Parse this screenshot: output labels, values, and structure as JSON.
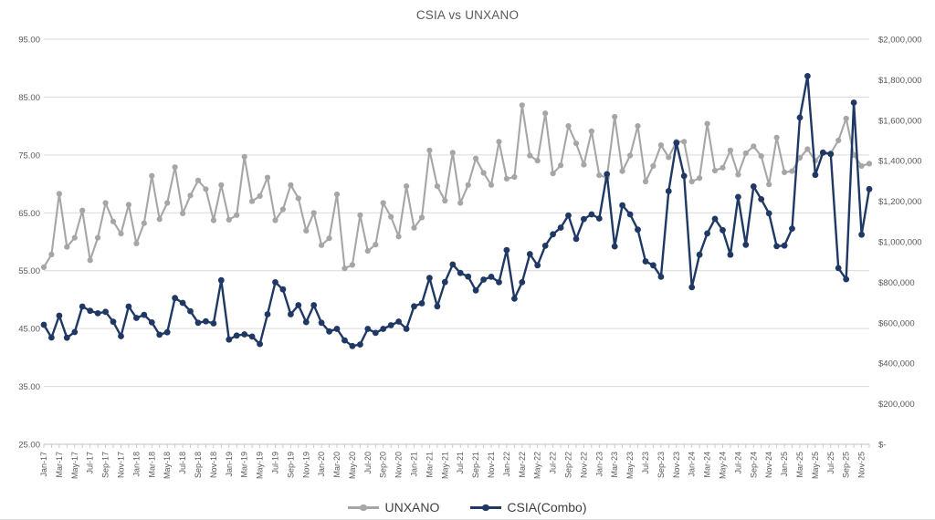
{
  "title": "CSIA vs UNXANO",
  "legend": {
    "items": [
      {
        "label": "UNXANO",
        "color": "#A6A6A6"
      },
      {
        "label": "CSIA(Combo)",
        "color": "#1F3864"
      }
    ]
  },
  "colors": {
    "background": "#FFFFFF",
    "gridline": "#D9D9D9",
    "axis_line": "#BFBFBF",
    "axis_text": "#595959",
    "title_text": "#595959",
    "legend_text": "#404040",
    "series_unxano": "#A6A6A6",
    "series_csia": "#1F3864"
  },
  "chart_data": {
    "type": "line",
    "title": "CSIA vs UNXANO",
    "grid": true,
    "legend_position": "bottom",
    "x_tick_label_every": 2,
    "x": [
      "Jan-17",
      "Feb-17",
      "Mar-17",
      "Apr-17",
      "May-17",
      "Jun-17",
      "Jul-17",
      "Aug-17",
      "Sep-17",
      "Oct-17",
      "Nov-17",
      "Dec-17",
      "Jan-18",
      "Feb-18",
      "Mar-18",
      "Apr-18",
      "May-18",
      "Jun-18",
      "Jul-18",
      "Aug-18",
      "Sep-18",
      "Oct-18",
      "Nov-18",
      "Dec-18",
      "Jan-19",
      "Feb-19",
      "Mar-19",
      "Apr-19",
      "May-19",
      "Jun-19",
      "Jul-19",
      "Aug-19",
      "Sep-19",
      "Oct-19",
      "Nov-19",
      "Dec-19",
      "Jan-20",
      "Feb-20",
      "Mar-20",
      "Apr-20",
      "May-20",
      "Jun-20",
      "Jul-20",
      "Aug-20",
      "Sep-20",
      "Oct-20",
      "Nov-20",
      "Dec-20",
      "Jan-21",
      "Feb-21",
      "Mar-21",
      "Apr-21",
      "May-21",
      "Jun-21",
      "Jul-21",
      "Aug-21",
      "Sep-21",
      "Oct-21",
      "Nov-21",
      "Dec-21",
      "Jan-22",
      "Feb-22",
      "Mar-22",
      "Apr-22",
      "May-22",
      "Jun-22",
      "Jul-22",
      "Aug-22",
      "Sep-22",
      "Oct-22",
      "Nov-22",
      "Dec-22",
      "Jan-23",
      "Feb-23",
      "Mar-23",
      "Apr-23",
      "May-23",
      "Jun-23",
      "Jul-23",
      "Aug-23",
      "Sep-23",
      "Oct-23",
      "Nov-23",
      "Dec-23",
      "Jan-24",
      "Feb-24",
      "Mar-24",
      "Apr-24",
      "May-24",
      "Jun-24",
      "Jul-24",
      "Aug-24",
      "Sep-24",
      "Oct-24",
      "Nov-24",
      "Dec-24",
      "Jan-25",
      "Feb-25",
      "Mar-25",
      "Apr-25",
      "May-25",
      "Jun-25",
      "Jul-25",
      "Aug-25",
      "Sep-25",
      "Oct-25",
      "Nov-25",
      "Dec-25"
    ],
    "left_axis": {
      "min": 25,
      "max": 95,
      "tick_step": 10,
      "tick_values": [
        25,
        35,
        45,
        55,
        65,
        75,
        85,
        95
      ],
      "tick_labels": [
        "25.00",
        "35.00",
        "45.00",
        "55.00",
        "65.00",
        "75.00",
        "85.00",
        "95.00"
      ]
    },
    "right_axis": {
      "min": 0,
      "max": 2000000,
      "tick_step": 200000,
      "tick_values": [
        0,
        200000,
        400000,
        600000,
        800000,
        1000000,
        1200000,
        1400000,
        1600000,
        1800000,
        2000000
      ],
      "tick_labels": [
        "$-",
        "$200,000",
        "$400,000",
        "$600,000",
        "$800,000",
        "$1,000,000",
        "$1,200,000",
        "$1,400,000",
        "$1,600,000",
        "$1,800,000",
        "$2,000,000"
      ]
    },
    "series": [
      {
        "name": "UNXANO",
        "axis": "left",
        "color": "#A6A6A6",
        "marker": "circle",
        "values": [
          55.6,
          57.8,
          68.3,
          59.1,
          60.7,
          65.4,
          56.8,
          60.7,
          66.7,
          63.5,
          61.4,
          66.4,
          59.7,
          63.2,
          71.4,
          63.9,
          66.7,
          72.9,
          64.9,
          68.0,
          70.6,
          69.1,
          63.7,
          69.8,
          63.8,
          64.6,
          74.7,
          67.0,
          67.9,
          71.1,
          63.7,
          65.6,
          69.8,
          67.5,
          61.9,
          65.0,
          59.4,
          60.6,
          68.2,
          55.4,
          56.0,
          64.6,
          58.4,
          59.5,
          66.7,
          64.3,
          60.9,
          69.6,
          62.4,
          64.2,
          75.8,
          69.6,
          67.1,
          75.4,
          66.7,
          69.8,
          74.4,
          71.9,
          69.8,
          77.3,
          70.9,
          71.2,
          83.6,
          74.9,
          74.0,
          82.2,
          71.8,
          73.2,
          80.0,
          77.0,
          73.3,
          79.1,
          71.5,
          71.1,
          81.6,
          72.2,
          74.9,
          80.0,
          70.4,
          73.1,
          76.7,
          74.6,
          77.3,
          77.3,
          70.4,
          71.0,
          80.4,
          72.3,
          72.8,
          75.8,
          71.6,
          75.3,
          76.5,
          74.8,
          69.9,
          78.0,
          72.0,
          72.2,
          74.5,
          76.0,
          74.0,
          75.5,
          75.3,
          77.5,
          81.3,
          75.0,
          73.1,
          73.5
        ]
      },
      {
        "name": "CSIA(Combo)",
        "axis": "right",
        "color": "#1F3864",
        "marker": "circle",
        "values": [
          590000,
          527000,
          635000,
          526000,
          554000,
          680000,
          659000,
          647000,
          654000,
          605000,
          534000,
          680000,
          624000,
          639000,
          602000,
          541000,
          553000,
          722000,
          698000,
          657000,
          600000,
          607000,
          597000,
          810000,
          517000,
          537000,
          543000,
          532000,
          495000,
          642000,
          800000,
          765000,
          642000,
          687000,
          603000,
          687000,
          600000,
          557000,
          570000,
          513000,
          485000,
          493000,
          570000,
          550000,
          570000,
          588000,
          606000,
          570000,
          681000,
          696000,
          821000,
          681000,
          801000,
          888000,
          846000,
          828000,
          760000,
          813000,
          827000,
          800000,
          959000,
          719000,
          800000,
          939000,
          884000,
          980000,
          1037000,
          1070000,
          1130000,
          1014000,
          1112000,
          1135000,
          1115000,
          1334000,
          977000,
          1180000,
          1135000,
          1060000,
          903000,
          884000,
          827000,
          1250000,
          1488000,
          1325000,
          775000,
          936000,
          1041000,
          1113000,
          1057000,
          936000,
          1221000,
          985000,
          1273000,
          1210000,
          1140000,
          978000,
          981000,
          1065000,
          1613000,
          1818000,
          1330000,
          1440000,
          1433000,
          870000,
          815000,
          1687000,
          1035000,
          1260000
        ]
      }
    ]
  }
}
